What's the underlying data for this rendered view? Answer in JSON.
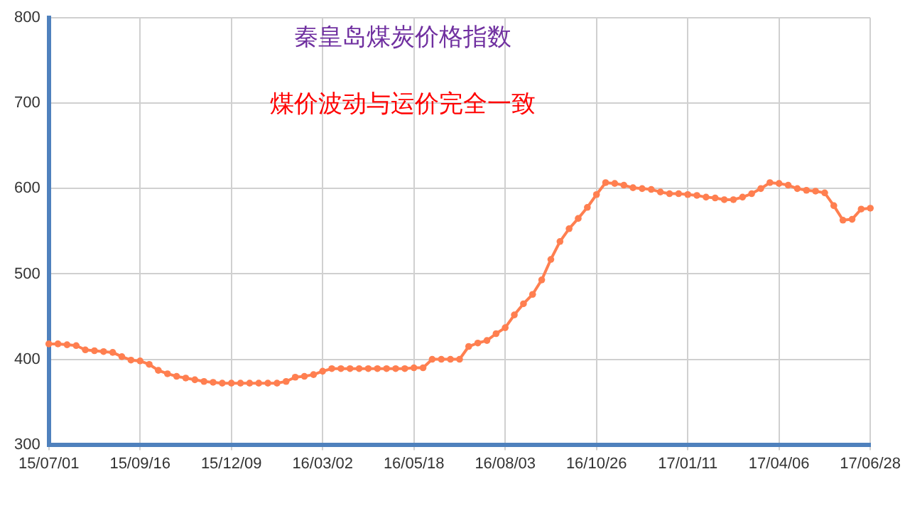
{
  "chart_data": {
    "type": "line",
    "title": "秦皇岛煤炭价格指数",
    "annotations": [
      "煤价波动与运价完全一致"
    ],
    "categories": [
      "15/07/01",
      null,
      null,
      null,
      null,
      null,
      null,
      null,
      null,
      null,
      "15/09/16",
      null,
      null,
      null,
      null,
      null,
      null,
      null,
      null,
      null,
      "15/12/09",
      null,
      null,
      null,
      null,
      null,
      null,
      null,
      null,
      null,
      "16/03/02",
      null,
      null,
      null,
      null,
      null,
      null,
      null,
      null,
      null,
      "16/05/18",
      null,
      null,
      null,
      null,
      null,
      null,
      null,
      null,
      null,
      "16/08/03",
      null,
      null,
      null,
      null,
      null,
      null,
      null,
      null,
      null,
      "16/10/26",
      null,
      null,
      null,
      null,
      null,
      null,
      null,
      null,
      null,
      "17/01/11",
      null,
      null,
      null,
      null,
      null,
      null,
      null,
      null,
      null,
      "17/04/06",
      null,
      null,
      null,
      null,
      null,
      null,
      null,
      null,
      null,
      "17/06/28"
    ],
    "series": [
      {
        "color": "#ff7f50",
        "values": [
          418,
          418,
          417,
          416,
          411,
          410,
          409,
          408,
          403,
          399,
          398,
          394,
          387,
          383,
          380,
          378,
          376,
          374,
          373,
          372,
          372,
          372,
          372,
          372,
          372,
          372,
          374,
          379,
          380,
          382,
          386,
          389,
          389,
          389,
          389,
          389,
          389,
          389,
          389,
          389,
          390,
          390,
          400,
          400,
          400,
          400,
          415,
          419,
          422,
          430,
          437,
          452,
          465,
          476,
          493,
          517,
          538,
          553,
          565,
          578,
          593,
          607,
          606,
          604,
          601,
          600,
          599,
          596,
          594,
          594,
          593,
          592,
          590,
          589,
          587,
          587,
          590,
          594,
          600,
          607,
          606,
          604,
          600,
          598,
          597,
          595,
          580,
          563,
          564,
          576,
          577
        ]
      }
    ],
    "ylim": [
      300,
      800
    ],
    "yticks": [
      300,
      400,
      500,
      600,
      700,
      800
    ],
    "grid": true,
    "legend": false,
    "marker": "circle",
    "line_style": "solid"
  }
}
